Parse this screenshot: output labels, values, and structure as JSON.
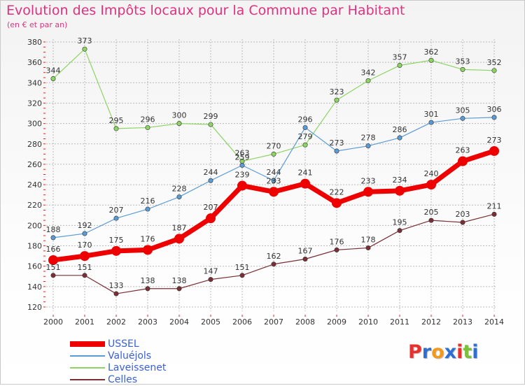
{
  "header": {
    "title": "Evolution des Impôts locaux pour la Commune par Habitant",
    "subtitle": "(en € et par an)"
  },
  "logo": {
    "text": "Proxiti",
    "letters": [
      {
        "ch": "P",
        "color": "#e8312f"
      },
      {
        "ch": "r",
        "color": "#2f6fd1"
      },
      {
        "ch": "o",
        "color": "#f39a1e"
      },
      {
        "ch": "x",
        "color": "#2f6fd1"
      },
      {
        "ch": "i",
        "color": "#e8312f"
      },
      {
        "ch": "t",
        "color": "#7bbf3a"
      },
      {
        "ch": "i",
        "color": "#2f6fd1"
      }
    ]
  },
  "chart_data": {
    "type": "line",
    "title": "Evolution des Impôts locaux pour la Commune par Habitant",
    "subtitle": "(en € et par an)",
    "xlabel": "",
    "ylabel": "",
    "x": [
      "2000",
      "2001",
      "2002",
      "2003",
      "2004",
      "2005",
      "2006",
      "2007",
      "2008",
      "2009",
      "2010",
      "2011",
      "2012",
      "2013",
      "2014"
    ],
    "ylim": [
      120,
      380
    ],
    "yticks": [
      120,
      140,
      160,
      180,
      200,
      220,
      240,
      260,
      280,
      300,
      320,
      340,
      360,
      380
    ],
    "grid": true,
    "legend_position": "bottom-left",
    "series": [
      {
        "name": "USSEL",
        "color": "#ee0000",
        "width": 7,
        "marker": 7,
        "values": [
          166,
          170,
          175,
          176,
          187,
          207,
          239,
          233,
          241,
          222,
          233,
          234,
          240,
          263,
          273
        ]
      },
      {
        "name": "Valuéjols",
        "color": "#5b9bd5",
        "width": 1.2,
        "marker": 3.2,
        "values": [
          188,
          192,
          207,
          216,
          228,
          244,
          259,
          244,
          296,
          273,
          278,
          286,
          301,
          305,
          306
        ]
      },
      {
        "name": "Laveissenet",
        "color": "#8ed464",
        "width": 1.2,
        "marker": 3.2,
        "values": [
          344,
          373,
          295,
          296,
          300,
          299,
          263,
          270,
          279,
          323,
          342,
          357,
          362,
          353,
          352
        ]
      },
      {
        "name": "Celles",
        "color": "#7a2f36",
        "width": 1.2,
        "marker": 3.2,
        "values": [
          151,
          151,
          133,
          138,
          138,
          147,
          151,
          162,
          167,
          176,
          178,
          195,
          205,
          203,
          211
        ]
      }
    ]
  }
}
